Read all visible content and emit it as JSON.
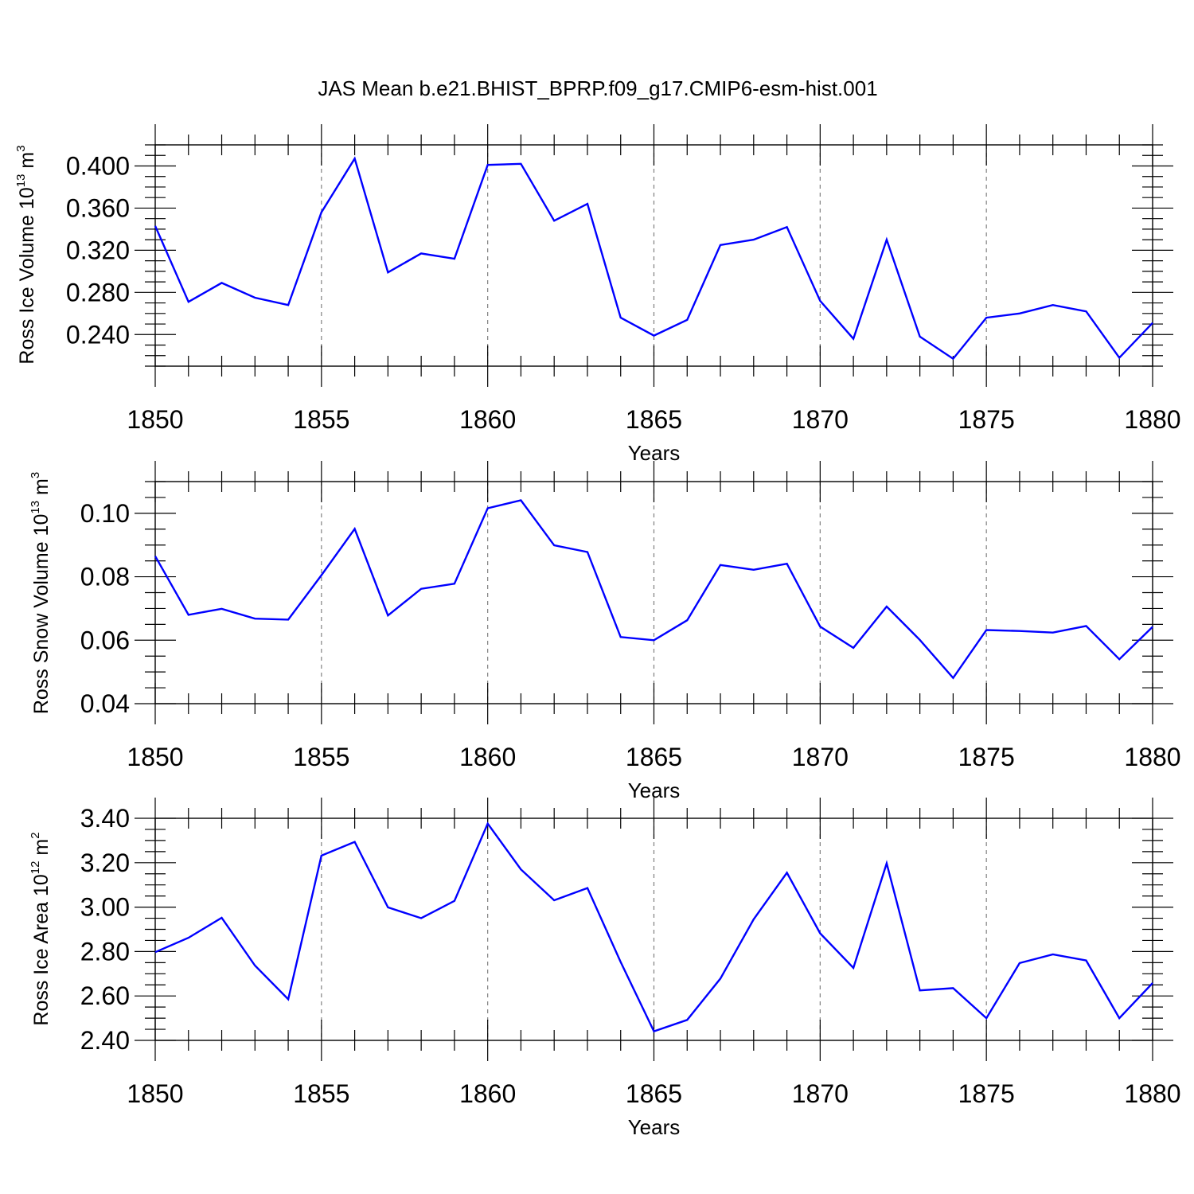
{
  "title": "JAS Mean b.e21.BHIST_BPRP.f09_g17.CMIP6-esm-hist.001",
  "colors": {
    "line": "#0000ff",
    "frame": "#000000",
    "grid": "#808080"
  },
  "chart_data": [
    {
      "type": "line",
      "ylabel_main": "Ross Ice Volume 10",
      "ylabel_exp": "13",
      "ylabel_unit": "m",
      "ylabel_unit_exp": "3",
      "xlabel": "Years",
      "xlim": [
        1850,
        1880
      ],
      "ylim": [
        0.21,
        0.42
      ],
      "yticks": [
        0.24,
        0.28,
        0.32,
        0.36,
        0.4
      ],
      "ytick_labels": [
        "0.240",
        "0.280",
        "0.320",
        "0.360",
        "0.400"
      ],
      "xticks": [
        1850,
        1855,
        1860,
        1865,
        1870,
        1875,
        1880
      ],
      "xtick_labels": [
        "1850",
        "1855",
        "1860",
        "1865",
        "1870",
        "1875",
        "1880"
      ],
      "x": [
        1850,
        1851,
        1852,
        1853,
        1854,
        1855,
        1856,
        1857,
        1858,
        1859,
        1860,
        1861,
        1862,
        1863,
        1864,
        1865,
        1866,
        1867,
        1868,
        1869,
        1870,
        1871,
        1872,
        1873,
        1874,
        1875,
        1876,
        1877,
        1878,
        1879,
        1880
      ],
      "values": [
        0.343,
        0.271,
        0.289,
        0.275,
        0.268,
        0.356,
        0.407,
        0.299,
        0.317,
        0.312,
        0.401,
        0.402,
        0.348,
        0.364,
        0.256,
        0.239,
        0.254,
        0.325,
        0.33,
        0.342,
        0.272,
        0.236,
        0.33,
        0.238,
        0.217,
        0.256,
        0.26,
        0.268,
        0.262,
        0.218,
        0.251
      ]
    },
    {
      "type": "line",
      "ylabel_main": "Ross Snow Volume 10",
      "ylabel_exp": "13",
      "ylabel_unit": "m",
      "ylabel_unit_exp": "3",
      "xlabel": "Years",
      "xlim": [
        1850,
        1880
      ],
      "ylim": [
        0.04,
        0.11
      ],
      "yticks": [
        0.04,
        0.06,
        0.08,
        0.1
      ],
      "ytick_labels": [
        "0.04",
        "0.06",
        "0.08",
        "0.10"
      ],
      "xticks": [
        1850,
        1855,
        1860,
        1865,
        1870,
        1875,
        1880
      ],
      "xtick_labels": [
        "1850",
        "1855",
        "1860",
        "1865",
        "1870",
        "1875",
        "1880"
      ],
      "x": [
        1850,
        1851,
        1852,
        1853,
        1854,
        1855,
        1856,
        1857,
        1858,
        1859,
        1860,
        1861,
        1862,
        1863,
        1864,
        1865,
        1866,
        1867,
        1868,
        1869,
        1870,
        1871,
        1872,
        1873,
        1874,
        1875,
        1876,
        1877,
        1878,
        1879,
        1880
      ],
      "values": [
        0.0865,
        0.068,
        0.0699,
        0.0668,
        0.0665,
        0.0805,
        0.0951,
        0.0678,
        0.0762,
        0.0778,
        0.1016,
        0.1041,
        0.0899,
        0.0878,
        0.061,
        0.06,
        0.0663,
        0.0837,
        0.0822,
        0.0841,
        0.0643,
        0.0576,
        0.0706,
        0.0601,
        0.0481,
        0.0632,
        0.0629,
        0.0624,
        0.0645,
        0.054,
        0.0642
      ]
    },
    {
      "type": "line",
      "ylabel_main": "Ross Ice Area 10",
      "ylabel_exp": "12",
      "ylabel_unit": "m",
      "ylabel_unit_exp": "2",
      "xlabel": "Years",
      "xlim": [
        1850,
        1880
      ],
      "ylim": [
        2.4,
        3.4
      ],
      "yticks": [
        2.4,
        2.6,
        2.8,
        3.0,
        3.2,
        3.4
      ],
      "ytick_labels": [
        "2.40",
        "2.60",
        "2.80",
        "3.00",
        "3.20",
        "3.40"
      ],
      "xticks": [
        1850,
        1855,
        1860,
        1865,
        1870,
        1875,
        1880
      ],
      "xtick_labels": [
        "1850",
        "1855",
        "1860",
        "1865",
        "1870",
        "1875",
        "1880"
      ],
      "x": [
        1850,
        1851,
        1852,
        1853,
        1854,
        1855,
        1856,
        1857,
        1858,
        1859,
        1860,
        1861,
        1862,
        1863,
        1864,
        1865,
        1866,
        1867,
        1868,
        1869,
        1870,
        1871,
        1872,
        1873,
        1874,
        1875,
        1876,
        1877,
        1878,
        1879,
        1880
      ],
      "values": [
        2.797,
        2.862,
        2.952,
        2.737,
        2.585,
        3.232,
        3.294,
        2.999,
        2.95,
        3.028,
        3.376,
        3.17,
        3.031,
        3.086,
        2.753,
        2.441,
        2.492,
        2.678,
        2.945,
        3.155,
        2.882,
        2.726,
        3.197,
        2.625,
        2.635,
        2.5,
        2.748,
        2.787,
        2.76,
        2.5,
        2.658
      ]
    }
  ]
}
